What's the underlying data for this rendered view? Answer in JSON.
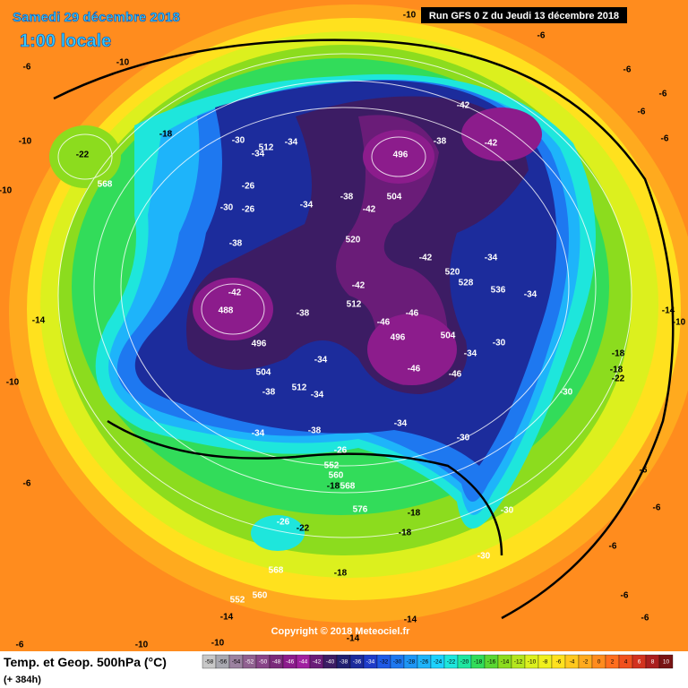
{
  "header": {
    "date": "Samedi 29 décembre 2018",
    "time": "1:00 locale",
    "run": "Run GFS 0 Z du Jeudi 13 décembre 2018"
  },
  "map": {
    "labels": [
      -10,
      -6,
      -6,
      -10,
      -6,
      -6,
      -6,
      -10,
      -6,
      -22,
      -18,
      -10,
      568,
      -42,
      -42,
      -38,
      496,
      -34,
      512,
      -34,
      -30,
      -26,
      -30,
      -26,
      -34,
      -38,
      504,
      -42,
      520,
      -42,
      520,
      528,
      -34,
      536,
      -34,
      -38,
      -42,
      488,
      -38,
      -42,
      512,
      -46,
      -46,
      496,
      504,
      -30,
      496,
      -34,
      504,
      -46,
      -46,
      -34,
      -38,
      512,
      -34,
      -30,
      -34,
      -38,
      -34,
      -30,
      -14,
      -10,
      -18,
      -18,
      -22,
      -10,
      -14,
      -26,
      552,
      560,
      -18,
      568,
      576,
      -18,
      -26,
      -22,
      -18,
      -30,
      -30,
      568,
      -18,
      552,
      560,
      -14,
      -14,
      -10,
      -14,
      -6,
      -6,
      -6,
      -6,
      -6,
      -6,
      -6,
      -10
    ]
  },
  "copyright": "Copyright © 2018 Meteociel.fr",
  "footer": {
    "title": "Temp. et Geop. 500hPa (°C)",
    "lead": "(+ 384h)"
  },
  "colorbar": {
    "values": [
      -58,
      -56,
      -54,
      -52,
      -50,
      -48,
      -46,
      -44,
      -42,
      -40,
      -38,
      -36,
      -34,
      -32,
      -30,
      -28,
      -26,
      -24,
      -22,
      -20,
      -18,
      -16,
      -14,
      -12,
      -10,
      -8,
      -6,
      -4,
      -2,
      0,
      2,
      4,
      6,
      8,
      10
    ],
    "colors": [
      "#c8c8c8",
      "#a8a8b0",
      "#9c82a0",
      "#906090",
      "#884488",
      "#7a2a7a",
      "#8c1c8c",
      "#a020a0",
      "#6a1c78",
      "#3c1c64",
      "#202070",
      "#1c2c9c",
      "#1e3cc8",
      "#1e5ae6",
      "#1e78f0",
      "#1e96f5",
      "#1eb4fa",
      "#1ed2ff",
      "#1ee6dc",
      "#1ee6a0",
      "#32dc5a",
      "#5ad732",
      "#8cdc1e",
      "#b4e61e",
      "#dcf01e",
      "#f0f01e",
      "#ffe11e",
      "#ffc81e",
      "#ffaa1e",
      "#ff8c1e",
      "#ff6e1e",
      "#f0501e",
      "#d2321e",
      "#aa1e1e",
      "#781414"
    ]
  }
}
